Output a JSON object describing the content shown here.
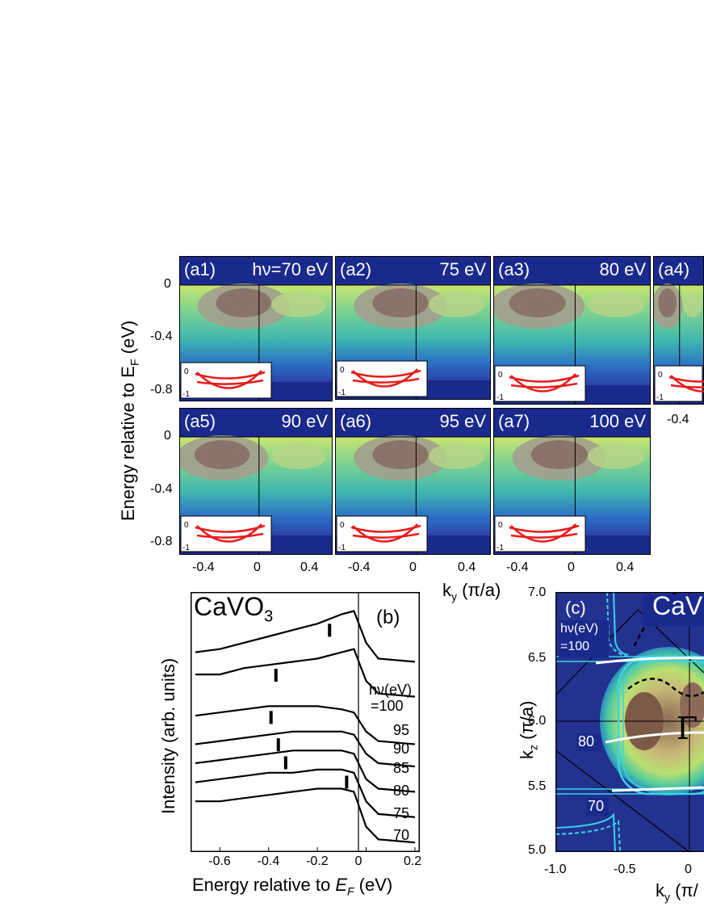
{
  "figure_a": {
    "ylabel_main": "Energy relative to E",
    "ylabel_sub": "F",
    "ylabel_unit": " (eV)",
    "xlabel_main": "k",
    "xlabel_sub": "y",
    "xlabel_unit": " (π/a)",
    "yticks": [
      "0",
      "-0.4",
      "-0.8"
    ],
    "xticks": [
      "-0.4",
      "0",
      "0.4"
    ],
    "inset_yticks": [
      "0",
      "-1"
    ],
    "panels": [
      {
        "id": "(a1)",
        "energy": "hν=70 eV"
      },
      {
        "id": "(a2)",
        "energy": "75 eV"
      },
      {
        "id": "(a3)",
        "energy": "80 eV"
      },
      {
        "id": "(a4)",
        "energy": ""
      },
      {
        "id": "(a5)",
        "energy": "90 eV"
      },
      {
        "id": "(a6)",
        "energy": "95 eV"
      },
      {
        "id": "(a7)",
        "energy": "100 eV"
      }
    ]
  },
  "figure_b": {
    "title_main": "CaVO",
    "title_sub": "3",
    "tag": "(b)",
    "ylabel": "Intensity (arb. units)",
    "xlabel_main": "Energy relative to ",
    "xlabel_italic": "E",
    "xlabel_sub": "F",
    "xlabel_unit": " (eV)",
    "legend_top": "hν(eV)",
    "curve_labels": [
      "=100",
      "95",
      "90",
      "85",
      "80",
      "75",
      "70"
    ],
    "xticks": [
      "-0.6",
      "-0.4",
      "-0.2",
      "0",
      "0.2"
    ]
  },
  "figure_c": {
    "tag": "(c)",
    "title": "CaV",
    "hv_label_1": "hν(eV)",
    "hv_label_2": "=100",
    "label_80": "80",
    "label_70": "70",
    "gamma": "Γ",
    "ylabel_main": "k",
    "ylabel_sub": "z",
    "ylabel_unit": " (π/a)",
    "xlabel_main": "k",
    "xlabel_sub": "y",
    "xlabel_unit": " (π/",
    "yticks": [
      "7.0",
      "6.5",
      "6.0",
      "5.5",
      "5.0"
    ],
    "xticks": [
      "-1.0",
      "-0.5",
      "0"
    ]
  },
  "chart_data": [
    {
      "type": "line",
      "title": "CaVO3",
      "xlabel": "Energy relative to EF (eV)",
      "ylabel": "Intensity (arb. units)",
      "xlim": [
        -0.72,
        0.22
      ],
      "series": [
        {
          "name": "=100",
          "x": [
            -0.7,
            -0.6,
            -0.5,
            -0.4,
            -0.3,
            -0.2,
            -0.1,
            -0.05,
            0,
            0.05,
            0.2
          ],
          "y": [
            6.3,
            6.4,
            6.6,
            6.8,
            7.0,
            7.2,
            7.5,
            7.6,
            6.6,
            6.1,
            6.0
          ]
        },
        {
          "name": "95",
          "x": [
            -0.7,
            -0.6,
            -0.5,
            -0.4,
            -0.3,
            -0.2,
            -0.1,
            -0.05,
            0,
            0.05,
            0.2
          ],
          "y": [
            5.6,
            5.6,
            5.8,
            5.9,
            6.0,
            6.1,
            6.3,
            6.4,
            5.4,
            5.0,
            4.9
          ]
        },
        {
          "name": "90",
          "x": [
            -0.7,
            -0.6,
            -0.5,
            -0.4,
            -0.3,
            -0.2,
            -0.1,
            -0.05,
            0,
            0.05,
            0.2
          ],
          "y": [
            4.3,
            4.4,
            4.5,
            4.6,
            4.6,
            4.6,
            4.5,
            4.4,
            3.8,
            3.5,
            3.4
          ]
        },
        {
          "name": "85",
          "x": [
            -0.7,
            -0.6,
            -0.5,
            -0.4,
            -0.3,
            -0.2,
            -0.1,
            -0.05,
            0,
            0.05,
            0.2
          ],
          "y": [
            3.4,
            3.5,
            3.6,
            3.7,
            3.8,
            3.8,
            3.8,
            3.7,
            3.1,
            2.8,
            2.7
          ]
        },
        {
          "name": "80",
          "x": [
            -0.7,
            -0.6,
            -0.5,
            -0.4,
            -0.3,
            -0.2,
            -0.1,
            -0.05,
            0,
            0.05,
            0.2
          ],
          "y": [
            2.8,
            2.9,
            3.0,
            3.1,
            3.2,
            3.2,
            3.2,
            3.1,
            2.3,
            2.0,
            1.9
          ]
        },
        {
          "name": "75",
          "x": [
            -0.7,
            -0.6,
            -0.5,
            -0.4,
            -0.3,
            -0.2,
            -0.1,
            -0.05,
            0,
            0.05,
            0.2
          ],
          "y": [
            2.2,
            2.3,
            2.4,
            2.5,
            2.5,
            2.6,
            2.6,
            2.5,
            1.6,
            1.2,
            1.1
          ]
        },
        {
          "name": "70",
          "x": [
            -0.7,
            -0.6,
            -0.5,
            -0.4,
            -0.3,
            -0.2,
            -0.1,
            -0.05,
            0,
            0.05,
            0.2
          ],
          "y": [
            1.6,
            1.6,
            1.7,
            1.8,
            1.9,
            2.0,
            2.0,
            1.9,
            0.8,
            0.4,
            0.3
          ]
        }
      ],
      "markers_x": [
        -0.15,
        -0.37,
        -0.39,
        -0.36,
        -0.33,
        -0.08
      ]
    }
  ],
  "colors": {
    "dark_blue": "#1a2a8c",
    "curve_red": "#e81c1c",
    "cyan": "#3ad6e8"
  }
}
